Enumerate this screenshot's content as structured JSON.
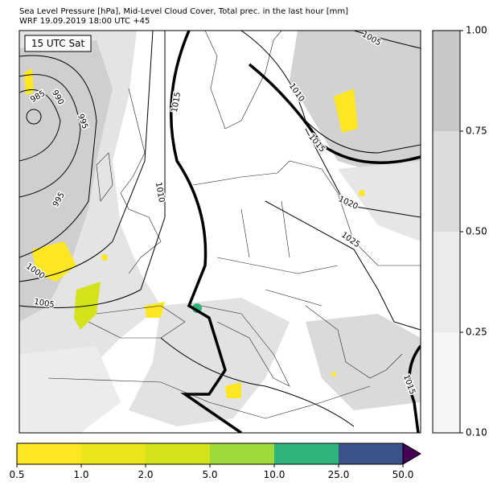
{
  "header": {
    "title": "Sea Level Pressure [hPa], Mid-Level Cloud Cover, Total prec. in the last hour [mm]",
    "subtitle": "WRF 19.09.2019 18:00 UTC +45"
  },
  "map": {
    "time_label": "15 UTC Sat",
    "isobar_labels": [
      "985",
      "990",
      "995",
      "995",
      "1000",
      "1005",
      "1010",
      "1015",
      "1010",
      "1015",
      "1020",
      "1025",
      "1015",
      "1005"
    ]
  },
  "cloud_colorbar": {
    "ticks": [
      {
        "value": 0.1,
        "label": "0.10"
      },
      {
        "value": 0.25,
        "label": "0.25"
      },
      {
        "value": 0.5,
        "label": "0.50"
      },
      {
        "value": 0.75,
        "label": "0.75"
      },
      {
        "value": 1.0,
        "label": "1.00"
      }
    ],
    "colors": [
      "#f5f5f5",
      "#ebebeb",
      "#dcdcdc",
      "#c8c8c8"
    ]
  },
  "precip_colorbar": {
    "ticks": [
      {
        "value": 0.5,
        "label": "0.5"
      },
      {
        "value": 1.0,
        "label": "1.0"
      },
      {
        "value": 2.0,
        "label": "2.0"
      },
      {
        "value": 5.0,
        "label": "5.0"
      },
      {
        "value": 10.0,
        "label": "10.0"
      },
      {
        "value": 25.0,
        "label": "25.0"
      },
      {
        "value": 50.0,
        "label": "50.0"
      }
    ],
    "colors": [
      "#fde725",
      "#ece51b",
      "#d2e21b",
      "#a0da39",
      "#2fb47c",
      "#3b528b"
    ],
    "extend_color": "#440154"
  }
}
